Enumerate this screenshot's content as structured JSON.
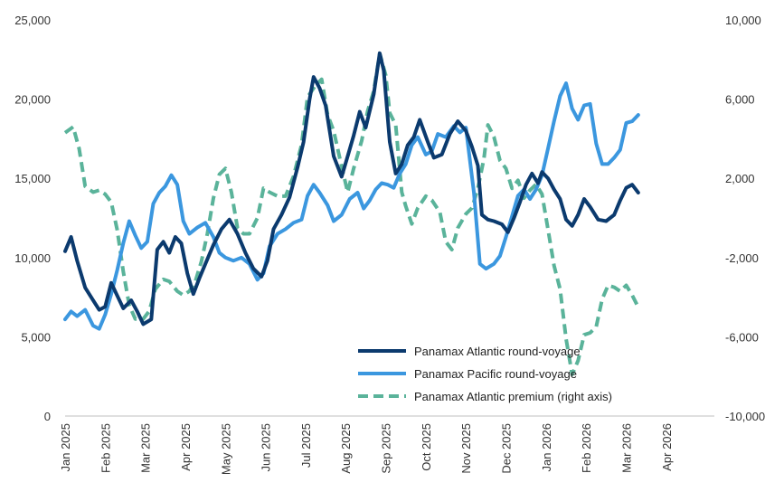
{
  "chart_data": {
    "type": "line",
    "title": "",
    "xlabel": "",
    "ylabel": "",
    "ylim": [
      0,
      25000
    ],
    "y2lim": [
      -10000,
      10000
    ],
    "grid": false,
    "legend_position": "bottom-center",
    "y_ticks": [
      "0",
      "5,000",
      "10,000",
      "15,000",
      "20,000",
      "25,000"
    ],
    "y_tick_values": [
      0,
      5000,
      10000,
      15000,
      20000,
      25000
    ],
    "y2_ticks": [
      "-10,000",
      "-6,000",
      "-2,000",
      "2,000",
      "6,000",
      "10,000"
    ],
    "y2_tick_values": [
      -10000,
      -6000,
      -2000,
      2000,
      6000,
      10000
    ],
    "x_ticks": [
      "Jan 2025",
      "Feb 2025",
      "Mar 2025",
      "Apr 2025",
      "May 2025",
      "Jun 2025",
      "Jul 2025",
      "Aug 2025",
      "Sep 2025",
      "Oct 2025",
      "Nov 2025",
      "Dec 2025",
      "Jan 2026",
      "Feb 2026",
      "Mar 2026",
      "Apr 2026"
    ],
    "x_domain": [
      0,
      16.2
    ],
    "series": [
      {
        "name": "Panamax Atlantic round-voyage",
        "axis": "left",
        "color": "#0b3a6e",
        "dash": false,
        "points": [
          [
            0,
            10400
          ],
          [
            0.15,
            11300
          ],
          [
            0.3,
            9800
          ],
          [
            0.5,
            8100
          ],
          [
            0.7,
            7300
          ],
          [
            0.85,
            6700
          ],
          [
            1.0,
            6900
          ],
          [
            1.15,
            8400
          ],
          [
            1.3,
            7600
          ],
          [
            1.45,
            6800
          ],
          [
            1.65,
            7300
          ],
          [
            1.8,
            6600
          ],
          [
            1.95,
            5800
          ],
          [
            2.15,
            6100
          ],
          [
            2.3,
            10500
          ],
          [
            2.45,
            11000
          ],
          [
            2.6,
            10300
          ],
          [
            2.75,
            11300
          ],
          [
            2.9,
            10900
          ],
          [
            3.05,
            9000
          ],
          [
            3.2,
            7700
          ],
          [
            3.35,
            8700
          ],
          [
            3.5,
            9600
          ],
          [
            3.7,
            10800
          ],
          [
            3.9,
            11800
          ],
          [
            4.1,
            12400
          ],
          [
            4.3,
            11500
          ],
          [
            4.5,
            10300
          ],
          [
            4.7,
            9300
          ],
          [
            4.9,
            8800
          ],
          [
            5.05,
            9800
          ],
          [
            5.2,
            11800
          ],
          [
            5.4,
            12700
          ],
          [
            5.6,
            13800
          ],
          [
            5.8,
            15700
          ],
          [
            5.95,
            17300
          ],
          [
            6.1,
            20000
          ],
          [
            6.2,
            21400
          ],
          [
            6.35,
            20700
          ],
          [
            6.5,
            19600
          ],
          [
            6.7,
            16400
          ],
          [
            6.9,
            15100
          ],
          [
            7.05,
            16400
          ],
          [
            7.2,
            17700
          ],
          [
            7.35,
            19200
          ],
          [
            7.5,
            18200
          ],
          [
            7.7,
            20300
          ],
          [
            7.85,
            22900
          ],
          [
            7.95,
            21800
          ],
          [
            8.1,
            17300
          ],
          [
            8.25,
            15300
          ],
          [
            8.4,
            15900
          ],
          [
            8.55,
            17100
          ],
          [
            8.7,
            17600
          ],
          [
            8.85,
            18700
          ],
          [
            9.05,
            17300
          ],
          [
            9.2,
            16300
          ],
          [
            9.4,
            16500
          ],
          [
            9.6,
            17800
          ],
          [
            9.8,
            18600
          ],
          [
            10.0,
            18000
          ],
          [
            10.15,
            17000
          ],
          [
            10.3,
            15800
          ],
          [
            10.4,
            12700
          ],
          [
            10.55,
            12400
          ],
          [
            10.7,
            12300
          ],
          [
            10.9,
            12100
          ],
          [
            11.05,
            11600
          ],
          [
            11.2,
            12500
          ],
          [
            11.35,
            13500
          ],
          [
            11.5,
            14600
          ],
          [
            11.65,
            15300
          ],
          [
            11.8,
            14700
          ],
          [
            11.9,
            15400
          ],
          [
            12.05,
            15000
          ],
          [
            12.2,
            14300
          ],
          [
            12.35,
            13700
          ],
          [
            12.5,
            12400
          ],
          [
            12.65,
            12000
          ],
          [
            12.8,
            12700
          ],
          [
            12.95,
            13700
          ],
          [
            13.1,
            13200
          ],
          [
            13.3,
            12400
          ],
          [
            13.5,
            12300
          ],
          [
            13.7,
            12700
          ],
          [
            13.85,
            13600
          ],
          [
            14.0,
            14400
          ],
          [
            14.15,
            14600
          ],
          [
            14.3,
            14100
          ]
        ]
      },
      {
        "name": "Panamax Pacific round-voyage",
        "axis": "left",
        "color": "#3b97df",
        "dash": false,
        "points": [
          [
            0,
            6100
          ],
          [
            0.15,
            6600
          ],
          [
            0.3,
            6300
          ],
          [
            0.5,
            6700
          ],
          [
            0.7,
            5700
          ],
          [
            0.85,
            5500
          ],
          [
            1.0,
            6400
          ],
          [
            1.15,
            7700
          ],
          [
            1.3,
            9200
          ],
          [
            1.45,
            10900
          ],
          [
            1.6,
            12300
          ],
          [
            1.75,
            11400
          ],
          [
            1.9,
            10600
          ],
          [
            2.05,
            11000
          ],
          [
            2.2,
            13400
          ],
          [
            2.35,
            14100
          ],
          [
            2.5,
            14500
          ],
          [
            2.65,
            15200
          ],
          [
            2.8,
            14600
          ],
          [
            2.95,
            12300
          ],
          [
            3.1,
            11500
          ],
          [
            3.3,
            11900
          ],
          [
            3.5,
            12200
          ],
          [
            3.7,
            11300
          ],
          [
            3.85,
            10300
          ],
          [
            4.0,
            10000
          ],
          [
            4.2,
            9800
          ],
          [
            4.4,
            10000
          ],
          [
            4.6,
            9600
          ],
          [
            4.8,
            8600
          ],
          [
            4.95,
            9000
          ],
          [
            5.1,
            10700
          ],
          [
            5.3,
            11500
          ],
          [
            5.5,
            11800
          ],
          [
            5.7,
            12200
          ],
          [
            5.9,
            12400
          ],
          [
            6.05,
            13900
          ],
          [
            6.2,
            14600
          ],
          [
            6.35,
            14100
          ],
          [
            6.55,
            13300
          ],
          [
            6.7,
            12300
          ],
          [
            6.9,
            12700
          ],
          [
            7.1,
            13700
          ],
          [
            7.3,
            14100
          ],
          [
            7.45,
            13100
          ],
          [
            7.6,
            13600
          ],
          [
            7.75,
            14300
          ],
          [
            7.9,
            14700
          ],
          [
            8.05,
            14600
          ],
          [
            8.2,
            14400
          ],
          [
            8.35,
            15300
          ],
          [
            8.5,
            15900
          ],
          [
            8.65,
            17100
          ],
          [
            8.8,
            17600
          ],
          [
            9.0,
            16500
          ],
          [
            9.15,
            16700
          ],
          [
            9.3,
            17800
          ],
          [
            9.5,
            17600
          ],
          [
            9.7,
            18300
          ],
          [
            9.85,
            17900
          ],
          [
            10.0,
            18200
          ],
          [
            10.2,
            14100
          ],
          [
            10.35,
            9600
          ],
          [
            10.5,
            9300
          ],
          [
            10.7,
            9600
          ],
          [
            10.85,
            10100
          ],
          [
            11.0,
            11300
          ],
          [
            11.15,
            12600
          ],
          [
            11.3,
            13900
          ],
          [
            11.45,
            14300
          ],
          [
            11.6,
            13700
          ],
          [
            11.75,
            14300
          ],
          [
            11.9,
            15200
          ],
          [
            12.05,
            16900
          ],
          [
            12.2,
            18600
          ],
          [
            12.35,
            20200
          ],
          [
            12.5,
            21000
          ],
          [
            12.65,
            19400
          ],
          [
            12.8,
            18700
          ],
          [
            12.95,
            19600
          ],
          [
            13.1,
            19700
          ],
          [
            13.25,
            17200
          ],
          [
            13.4,
            15900
          ],
          [
            13.55,
            15900
          ],
          [
            13.7,
            16300
          ],
          [
            13.85,
            16800
          ],
          [
            14.0,
            18500
          ],
          [
            14.15,
            18600
          ],
          [
            14.3,
            19000
          ]
        ]
      },
      {
        "name": "Panamax Atlantic premium (right axis)",
        "axis": "right",
        "color": "#5ab39a",
        "dash": true,
        "points": [
          [
            0,
            4300
          ],
          [
            0.2,
            4600
          ],
          [
            0.35,
            3500
          ],
          [
            0.5,
            1600
          ],
          [
            0.7,
            1300
          ],
          [
            0.85,
            1400
          ],
          [
            1.0,
            1200
          ],
          [
            1.15,
            800
          ],
          [
            1.3,
            -600
          ],
          [
            1.45,
            -2700
          ],
          [
            1.6,
            -4400
          ],
          [
            1.75,
            -5100
          ],
          [
            1.95,
            -5100
          ],
          [
            2.1,
            -4700
          ],
          [
            2.25,
            -3600
          ],
          [
            2.45,
            -3100
          ],
          [
            2.6,
            -3200
          ],
          [
            2.8,
            -3700
          ],
          [
            2.95,
            -3900
          ],
          [
            3.1,
            -3700
          ],
          [
            3.25,
            -3200
          ],
          [
            3.4,
            -2200
          ],
          [
            3.55,
            -800
          ],
          [
            3.7,
            1000
          ],
          [
            3.85,
            2200
          ],
          [
            4.0,
            2500
          ],
          [
            4.15,
            1300
          ],
          [
            4.3,
            -500
          ],
          [
            4.45,
            -800
          ],
          [
            4.6,
            -800
          ],
          [
            4.8,
            0
          ],
          [
            4.95,
            1500
          ],
          [
            5.1,
            1300
          ],
          [
            5.3,
            1100
          ],
          [
            5.5,
            1100
          ],
          [
            5.7,
            2100
          ],
          [
            5.9,
            3700
          ],
          [
            6.05,
            6100
          ],
          [
            6.25,
            6700
          ],
          [
            6.4,
            7000
          ],
          [
            6.55,
            5200
          ],
          [
            6.7,
            4400
          ],
          [
            6.9,
            2600
          ],
          [
            7.05,
            1300
          ],
          [
            7.2,
            2500
          ],
          [
            7.4,
            3900
          ],
          [
            7.55,
            5400
          ],
          [
            7.7,
            6400
          ],
          [
            7.85,
            8300
          ],
          [
            8.0,
            7200
          ],
          [
            8.1,
            5300
          ],
          [
            8.25,
            4700
          ],
          [
            8.4,
            1300
          ],
          [
            8.5,
            600
          ],
          [
            8.65,
            -300
          ],
          [
            8.8,
            500
          ],
          [
            9.0,
            1100
          ],
          [
            9.15,
            900
          ],
          [
            9.35,
            300
          ],
          [
            9.5,
            -1200
          ],
          [
            9.65,
            -1600
          ],
          [
            9.8,
            -500
          ],
          [
            10.0,
            200
          ],
          [
            10.15,
            500
          ],
          [
            10.3,
            1500
          ],
          [
            10.45,
            3000
          ],
          [
            10.55,
            4700
          ],
          [
            10.7,
            4100
          ],
          [
            10.85,
            2900
          ],
          [
            11.0,
            2500
          ],
          [
            11.15,
            1500
          ],
          [
            11.3,
            1900
          ],
          [
            11.45,
            1000
          ],
          [
            11.6,
            1400
          ],
          [
            11.75,
            1700
          ],
          [
            11.9,
            1200
          ],
          [
            12.05,
            -600
          ],
          [
            12.2,
            -2400
          ],
          [
            12.35,
            -3600
          ],
          [
            12.5,
            -6100
          ],
          [
            12.65,
            -7900
          ],
          [
            12.8,
            -7200
          ],
          [
            12.95,
            -5900
          ],
          [
            13.1,
            -5800
          ],
          [
            13.25,
            -5500
          ],
          [
            13.4,
            -4100
          ],
          [
            13.55,
            -3400
          ],
          [
            13.7,
            -3500
          ],
          [
            13.85,
            -3700
          ],
          [
            14.0,
            -3400
          ],
          [
            14.15,
            -3900
          ],
          [
            14.3,
            -4500
          ]
        ]
      }
    ]
  }
}
